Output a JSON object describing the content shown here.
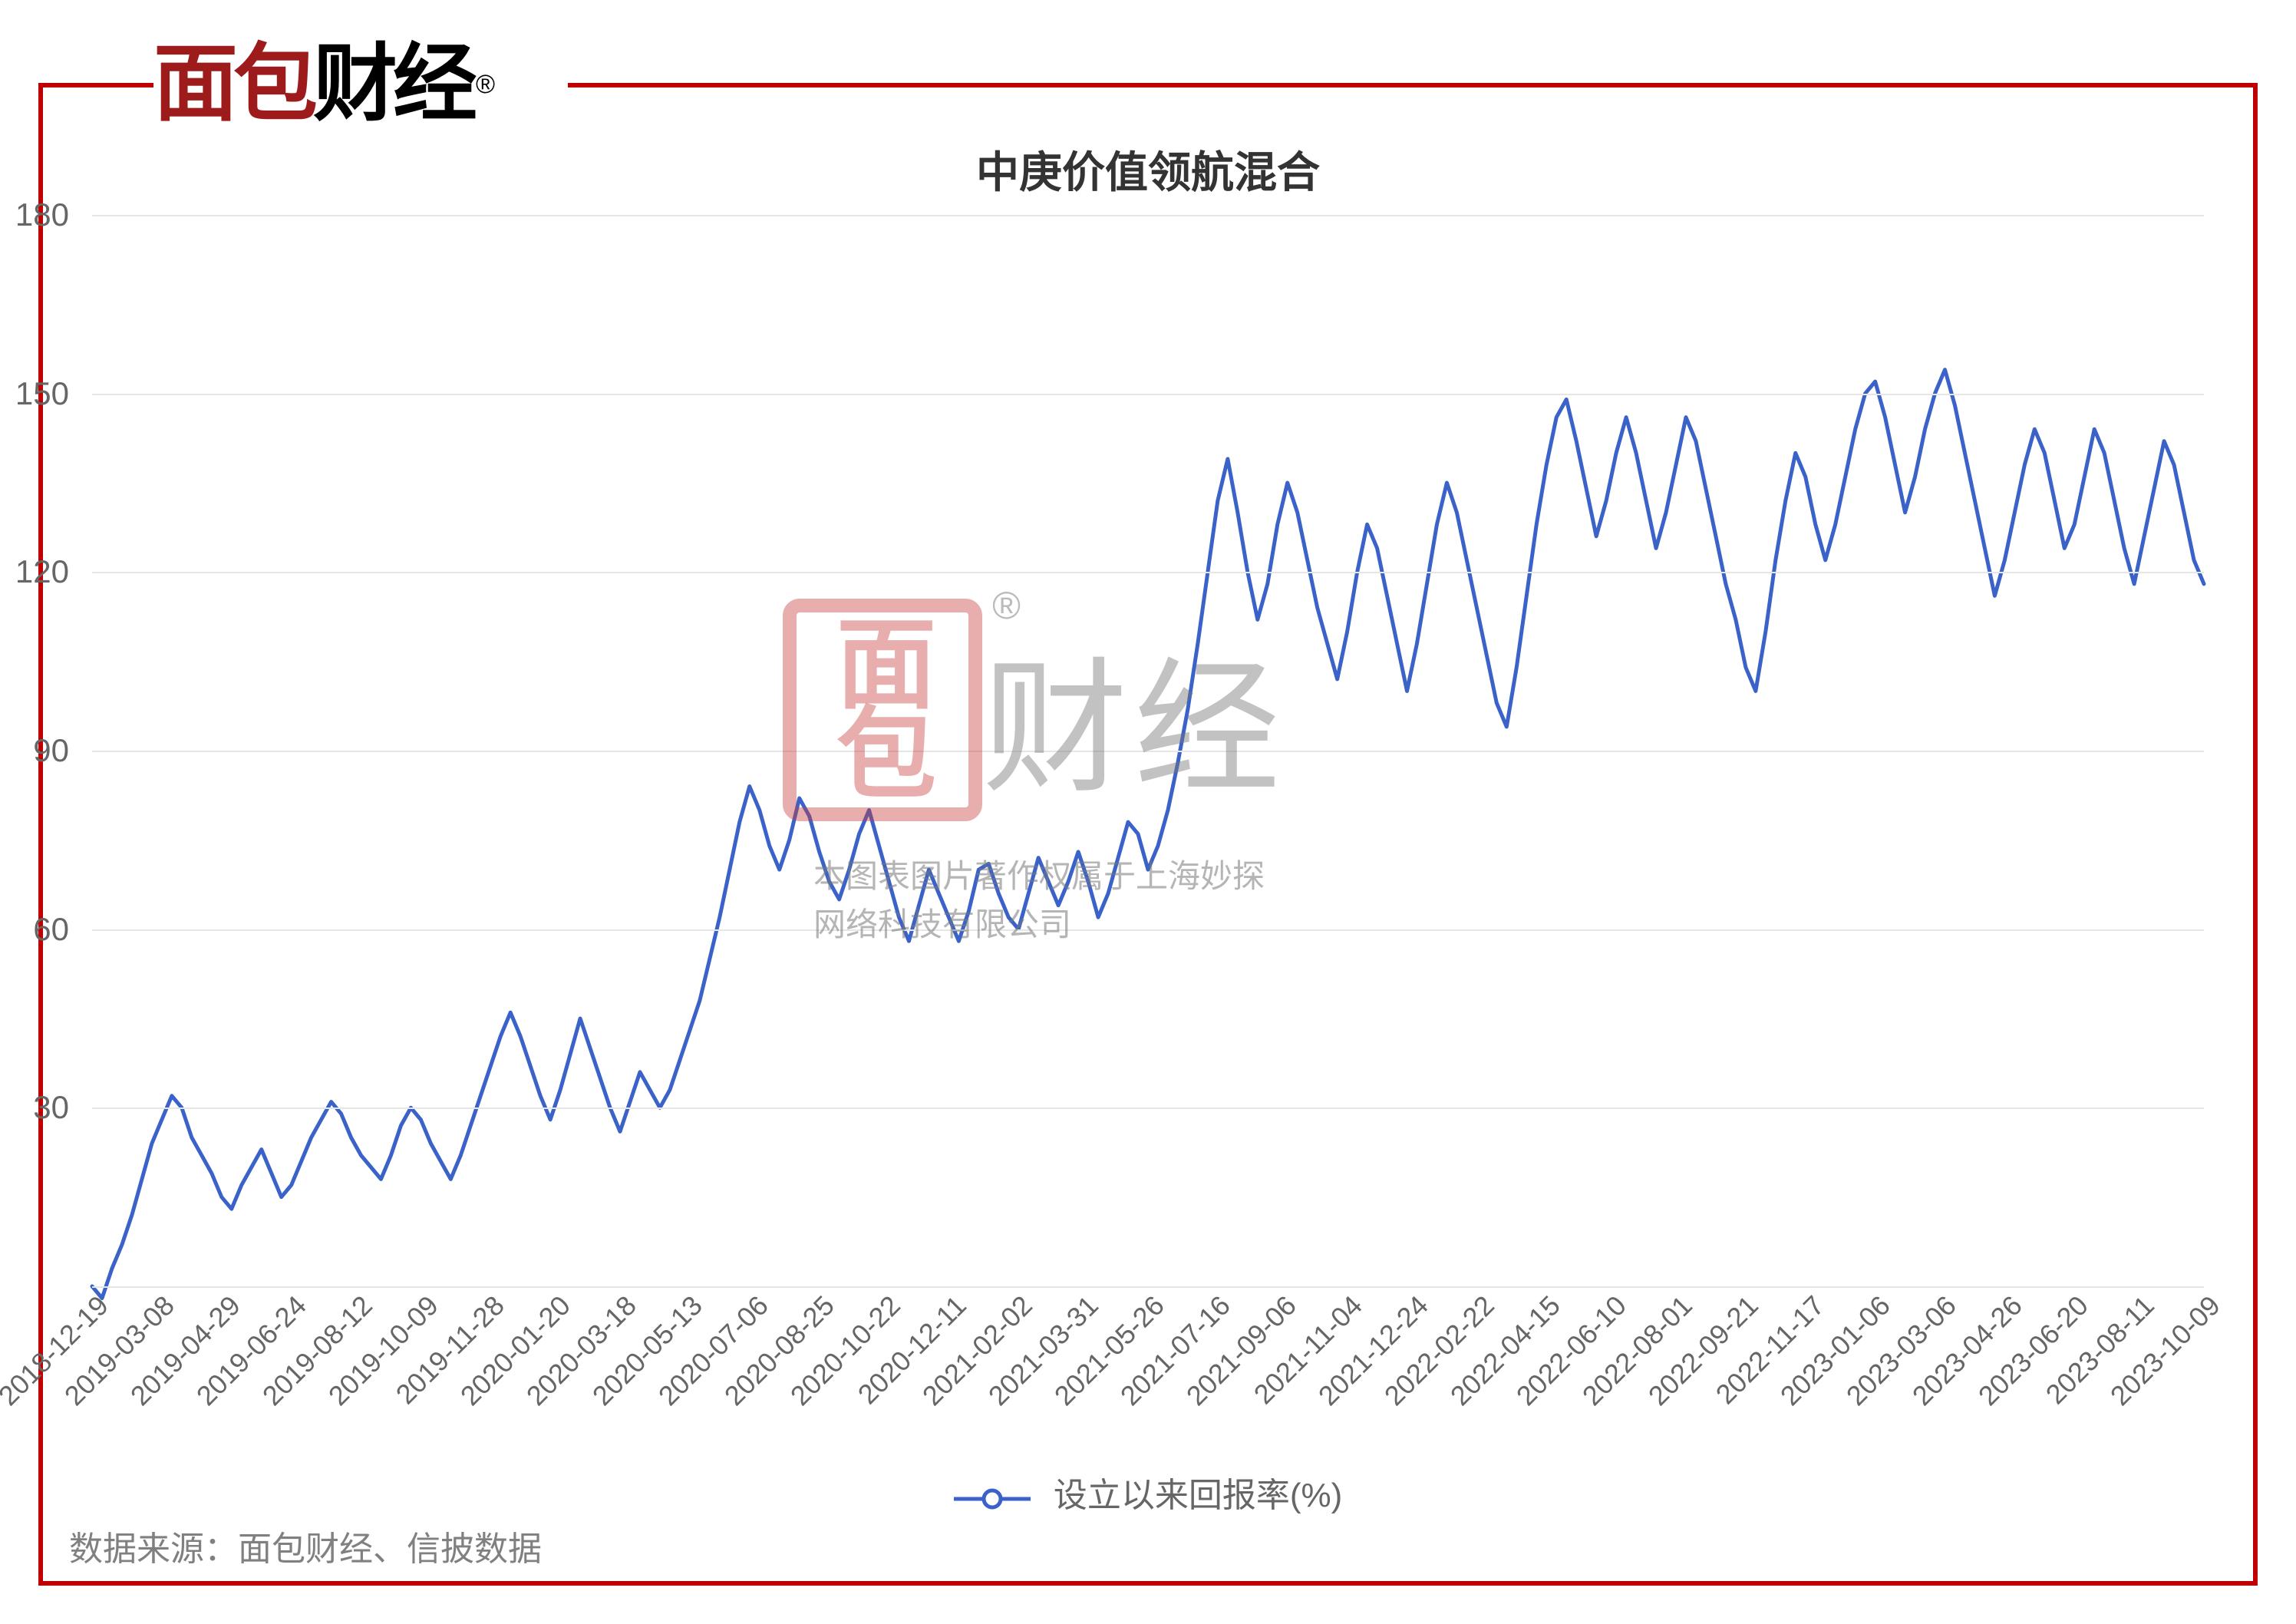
{
  "logo": {
    "red_part": "面包",
    "black_part": "财经",
    "registered_mark": "®"
  },
  "chart": {
    "type": "line",
    "title": "中庚价值领航混合",
    "title_fontsize": 56,
    "title_color": "#333333",
    "background_color": "#ffffff",
    "grid_color": "#e6e6e6",
    "axis_label_color": "#666666",
    "axis_label_fontsize": 42,
    "line_color": "#3a62c9",
    "line_width": 5,
    "ylim": [
      0,
      180
    ],
    "yticks": [
      0,
      30,
      60,
      90,
      120,
      150,
      180
    ],
    "x_labels": [
      "2018-12-19",
      "2019-03-08",
      "2019-04-29",
      "2019-06-24",
      "2019-08-12",
      "2019-10-09",
      "2019-11-28",
      "2020-01-20",
      "2020-03-18",
      "2020-05-13",
      "2020-07-06",
      "2020-08-25",
      "2020-10-22",
      "2020-12-11",
      "2021-02-02",
      "2021-03-31",
      "2021-05-26",
      "2021-07-16",
      "2021-09-06",
      "2021-11-04",
      "2021-12-24",
      "2022-02-22",
      "2022-04-15",
      "2022-06-10",
      "2022-08-01",
      "2022-09-21",
      "2022-11-17",
      "2023-01-06",
      "2023-03-06",
      "2023-04-26",
      "2023-06-20",
      "2023-08-11",
      "2023-10-09"
    ],
    "x_label_rotation_deg": -45,
    "series": [
      0,
      -2,
      3,
      7,
      12,
      18,
      24,
      28,
      32,
      30,
      25,
      22,
      19,
      15,
      13,
      17,
      20,
      23,
      19,
      15,
      17,
      21,
      25,
      28,
      31,
      29,
      25,
      22,
      20,
      18,
      22,
      27,
      30,
      28,
      24,
      21,
      18,
      22,
      27,
      32,
      37,
      42,
      46,
      42,
      37,
      32,
      28,
      33,
      39,
      45,
      40,
      35,
      30,
      26,
      31,
      36,
      33,
      30,
      33,
      38,
      43,
      48,
      55,
      62,
      70,
      78,
      84,
      80,
      74,
      70,
      75,
      82,
      79,
      73,
      68,
      65,
      70,
      76,
      80,
      74,
      68,
      62,
      58,
      64,
      70,
      66,
      62,
      58,
      63,
      70,
      71,
      66,
      62,
      60,
      66,
      72,
      68,
      64,
      68,
      73,
      68,
      62,
      66,
      72,
      78,
      76,
      70,
      74,
      80,
      88,
      97,
      108,
      120,
      132,
      139,
      130,
      120,
      112,
      118,
      128,
      135,
      130,
      122,
      114,
      108,
      102,
      110,
      120,
      128,
      124,
      116,
      108,
      100,
      108,
      118,
      128,
      135,
      130,
      122,
      114,
      106,
      98,
      94,
      104,
      116,
      128,
      138,
      146,
      149,
      142,
      134,
      126,
      132,
      140,
      146,
      140,
      132,
      124,
      130,
      138,
      146,
      142,
      134,
      126,
      118,
      112,
      104,
      100,
      110,
      122,
      132,
      140,
      136,
      128,
      122,
      128,
      136,
      144,
      150,
      152,
      146,
      138,
      130,
      136,
      144,
      150,
      154,
      148,
      140,
      132,
      124,
      116,
      122,
      130,
      138,
      144,
      140,
      132,
      124,
      128,
      136,
      144,
      140,
      132,
      124,
      118,
      126,
      134,
      142,
      138,
      130,
      122,
      118
    ],
    "legend": {
      "label": "设立以来回报率(%)",
      "marker": "circle",
      "marker_color": "#3a62c9"
    }
  },
  "watermark": {
    "logo_rows": [
      "面",
      "包"
    ],
    "text": "财经",
    "registered": "®",
    "copyright_line1": "本图表图片著作权属于上海妙探",
    "copyright_line2": "网络科技有限公司"
  },
  "source_label": "数据来源：面包财经、信披数据",
  "frame_border_color": "#c00000"
}
